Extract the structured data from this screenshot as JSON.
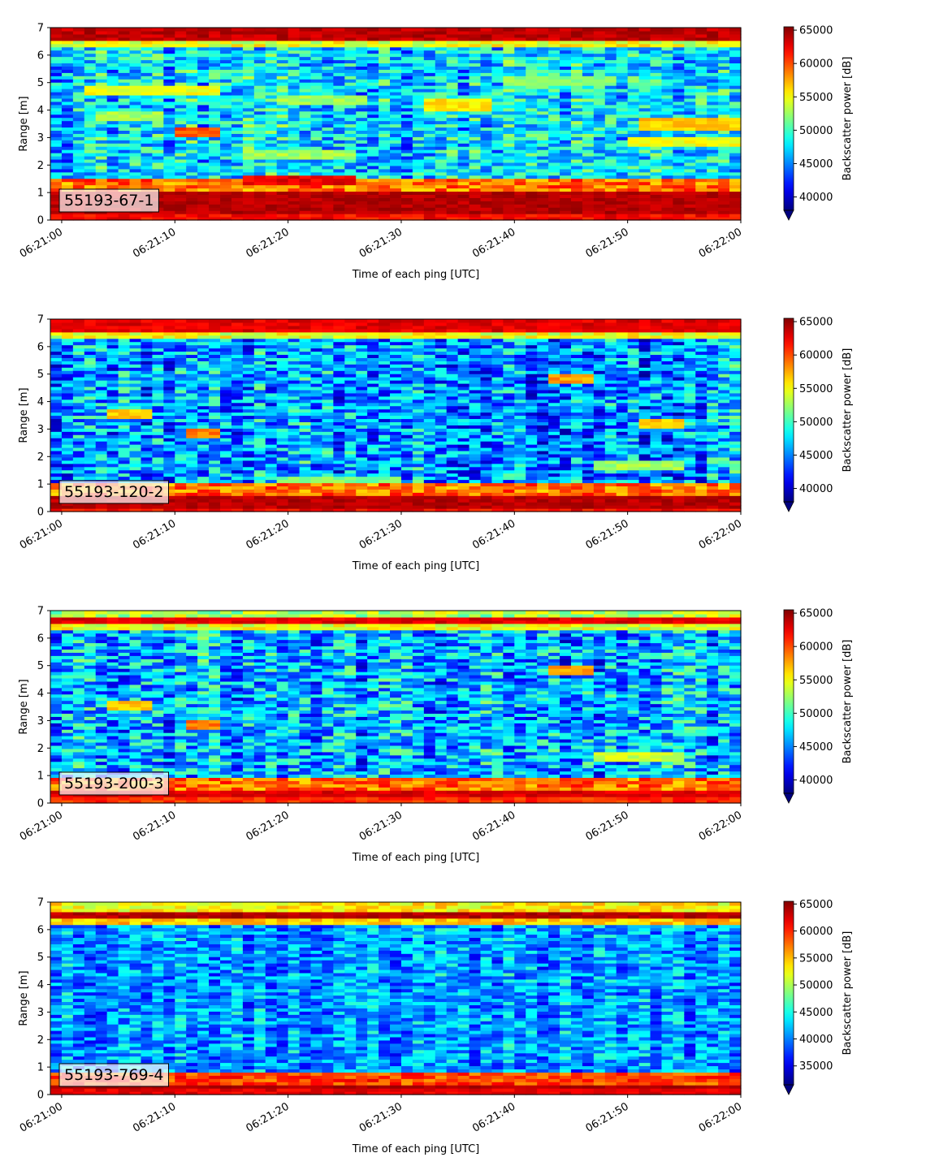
{
  "chart_data": [
    {
      "type": "heatmap",
      "label": "55193-67-1",
      "xlabel": "Time of each ping [UTC]",
      "ylabel": "Range [m]",
      "x_ticks": [
        "06:21:00",
        "06:21:10",
        "06:21:20",
        "06:21:30",
        "06:21:40",
        "06:21:50",
        "06:22:00"
      ],
      "xlim": [
        "06:20:59",
        "06:22:00"
      ],
      "y_ticks": [
        0,
        1,
        2,
        3,
        4,
        5,
        6,
        7
      ],
      "ylim": [
        0,
        7
      ],
      "colorbar": {
        "label": "Backscatter power [dB]",
        "ticks": [
          40000,
          45000,
          50000,
          55000,
          60000,
          65000
        ],
        "range": [
          38000,
          65500
        ],
        "extend": "min"
      },
      "colormap": "jet",
      "features": {
        "near_band": {
          "range": [
            0.2,
            1.1
          ],
          "value": 65000
        },
        "far_band": {
          "range": [
            6.5,
            7.0
          ],
          "value": 65000
        },
        "background_mean": 47500,
        "background_spread": 4500,
        "streaks": [
          {
            "t": [
              3,
              14
            ],
            "r": 4.7,
            "value": 56000
          },
          {
            "t": [
              4,
              9
            ],
            "r": 3.8,
            "value": 54000
          },
          {
            "t": [
              11,
              14
            ],
            "r": 3.2,
            "value": 61000
          },
          {
            "t": [
              17,
              26
            ],
            "r": 1.45,
            "value": 64000
          },
          {
            "t": [
              17,
              26
            ],
            "r": 2.4,
            "value": 54000
          },
          {
            "t": [
              20,
              27
            ],
            "r": 4.4,
            "value": 54000
          },
          {
            "t": [
              33,
              38
            ],
            "r": 4.2,
            "value": 57000
          },
          {
            "t": [
              52,
              61
            ],
            "r": 3.5,
            "value": 58000
          },
          {
            "t": [
              51,
              61
            ],
            "r": 2.9,
            "value": 56000
          },
          {
            "t": [
              40,
              49
            ],
            "r": 5.1,
            "value": 53000
          }
        ]
      }
    },
    {
      "type": "heatmap",
      "label": "55193-120-2",
      "xlabel": "Time of each ping [UTC]",
      "ylabel": "Range [m]",
      "x_ticks": [
        "06:21:00",
        "06:21:10",
        "06:21:20",
        "06:21:30",
        "06:21:40",
        "06:21:50",
        "06:22:00"
      ],
      "xlim": [
        "06:20:59",
        "06:22:00"
      ],
      "y_ticks": [
        0,
        1,
        2,
        3,
        4,
        5,
        6,
        7
      ],
      "ylim": [
        0,
        7
      ],
      "colorbar": {
        "label": "Backscatter power [dB]",
        "ticks": [
          40000,
          45000,
          50000,
          55000,
          60000,
          65000
        ],
        "range": [
          38000,
          65500
        ],
        "extend": "min"
      },
      "colormap": "jet",
      "features": {
        "near_band": {
          "range": [
            0.1,
            0.55
          ],
          "value": 65000
        },
        "far_band": {
          "range": [
            6.5,
            7.0
          ],
          "value": 64000
        },
        "background_mean": 45500,
        "background_spread": 5000,
        "streaks": [
          {
            "t": [
              5,
              8
            ],
            "r": 3.6,
            "value": 58000
          },
          {
            "t": [
              12,
              14
            ],
            "r": 2.9,
            "value": 60000
          },
          {
            "t": [
              44,
              47
            ],
            "r": 4.8,
            "value": 59000
          },
          {
            "t": [
              48,
              55
            ],
            "r": 1.7,
            "value": 54000
          },
          {
            "t": [
              20,
              30
            ],
            "r": 1.1,
            "value": 53000
          },
          {
            "t": [
              52,
              55
            ],
            "r": 3.2,
            "value": 58000
          }
        ]
      }
    },
    {
      "type": "heatmap",
      "label": "55193-200-3",
      "xlabel": "Time of each ping [UTC]",
      "ylabel": "Range [m]",
      "x_ticks": [
        "06:21:00",
        "06:21:10",
        "06:21:20",
        "06:21:30",
        "06:21:40",
        "06:21:50",
        "06:22:00"
      ],
      "xlim": [
        "06:20:59",
        "06:22:00"
      ],
      "y_ticks": [
        0,
        1,
        2,
        3,
        4,
        5,
        6,
        7
      ],
      "ylim": [
        0,
        7
      ],
      "colorbar": {
        "label": "Backscatter power [dB]",
        "ticks": [
          40000,
          45000,
          50000,
          55000,
          60000,
          65000
        ],
        "range": [
          38000,
          65500
        ],
        "extend": "min"
      },
      "colormap": "jet",
      "features": {
        "near_band": {
          "range": [
            0.25,
            0.5
          ],
          "value": 64000
        },
        "far_band": {
          "range": [
            6.5,
            6.8
          ],
          "value": 64000
        },
        "background_mean": 46000,
        "background_spread": 5000,
        "streaks": [
          {
            "t": [
              5,
              8
            ],
            "r": 3.6,
            "value": 58000
          },
          {
            "t": [
              12,
              14
            ],
            "r": 2.9,
            "value": 60000
          },
          {
            "t": [
              44,
              47
            ],
            "r": 4.8,
            "value": 59000
          },
          {
            "t": [
              48,
              55
            ],
            "r": 1.7,
            "value": 55000
          },
          {
            "t": [
              35,
              50
            ],
            "r": 0.8,
            "value": 54000
          }
        ]
      }
    },
    {
      "type": "heatmap",
      "label": "55193-769-4",
      "xlabel": "Time of each ping [UTC]",
      "ylabel": "Range [m]",
      "x_ticks": [
        "06:21:00",
        "06:21:10",
        "06:21:20",
        "06:21:30",
        "06:21:40",
        "06:21:50",
        "06:22:00"
      ],
      "xlim": [
        "06:20:59",
        "06:22:00"
      ],
      "y_ticks": [
        0,
        1,
        2,
        3,
        4,
        5,
        6,
        7
      ],
      "ylim": [
        0,
        7
      ],
      "colorbar": {
        "label": "Backscatter power [dB]",
        "ticks": [
          35000,
          40000,
          45000,
          50000,
          55000,
          60000,
          65000
        ],
        "range": [
          31500,
          65500
        ],
        "extend": "min"
      },
      "colormap": "jet",
      "features": {
        "near_band": {
          "range": [
            0.2,
            0.35
          ],
          "value": 65000
        },
        "far_band": {
          "range": [
            6.4,
            6.6
          ],
          "value": 65000
        },
        "background_mean": 41000,
        "background_spread": 4500,
        "streaks": [
          {
            "t": [
              0,
              61
            ],
            "r": 0.6,
            "value": 47000
          },
          {
            "t": [
              51,
              53
            ],
            "r": 0.5,
            "value": 60000
          }
        ]
      }
    }
  ]
}
